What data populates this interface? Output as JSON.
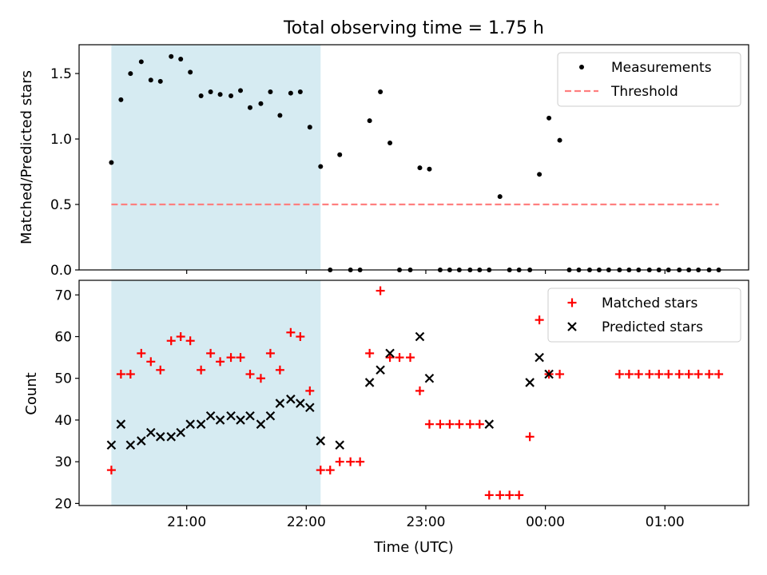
{
  "title": "Total observing time = 1.75 h",
  "x_axis": {
    "label": "Time (UTC)",
    "ticks": [
      {
        "value": 21.0,
        "label": "21:00"
      },
      {
        "value": 22.0,
        "label": "22:00"
      },
      {
        "value": 23.0,
        "label": "23:00"
      },
      {
        "value": 24.0,
        "label": "00:00"
      },
      {
        "value": 25.0,
        "label": "01:00"
      }
    ]
  },
  "colors": {
    "shade": "#add8e6",
    "measurements": "#000000",
    "threshold": "#ff7f7f",
    "matched": "#ff0000",
    "predicted": "#000000"
  },
  "chart_data": [
    {
      "type": "scatter",
      "xlabel": "",
      "ylabel": "Matched/Predicted stars",
      "xlim": [
        20.1,
        25.7
      ],
      "ylim": [
        0.0,
        1.72
      ],
      "yticks": [
        {
          "value": 0.0,
          "label": "0.0"
        },
        {
          "value": 0.5,
          "label": "0.5"
        },
        {
          "value": 1.0,
          "label": "1.0"
        },
        {
          "value": 1.5,
          "label": "1.5"
        }
      ],
      "shaded_region": [
        20.37,
        22.12
      ],
      "grid": false,
      "legend": {
        "position": "top-right",
        "entries": [
          "Measurements",
          "Threshold"
        ]
      },
      "series": [
        {
          "name": "Measurements",
          "marker": "dot",
          "x": [
            20.37,
            20.45,
            20.53,
            20.62,
            20.7,
            20.78,
            20.87,
            20.95,
            21.03,
            21.12,
            21.2,
            21.28,
            21.37,
            21.45,
            21.53,
            21.62,
            21.7,
            21.78,
            21.87,
            21.95,
            22.03,
            22.12,
            22.2,
            22.28,
            22.37,
            22.45,
            22.53,
            22.62,
            22.7,
            22.78,
            22.87,
            22.95,
            23.03,
            23.12,
            23.2,
            23.28,
            23.37,
            23.45,
            23.53,
            23.62,
            23.7,
            23.78,
            23.87,
            23.95,
            24.03,
            24.12,
            24.2,
            24.28,
            24.37,
            24.45,
            24.53,
            24.62,
            24.7,
            24.78,
            24.87,
            24.95,
            25.03,
            25.12,
            25.2,
            25.28,
            25.37,
            25.45
          ],
          "values": [
            0.82,
            1.3,
            1.5,
            1.59,
            1.45,
            1.44,
            1.63,
            1.61,
            1.51,
            1.33,
            1.36,
            1.34,
            1.33,
            1.37,
            1.24,
            1.27,
            1.36,
            1.18,
            1.35,
            1.36,
            1.09,
            0.79,
            0,
            0.88,
            0,
            0,
            1.14,
            1.36,
            0.97,
            0,
            0,
            0.78,
            0.77,
            0,
            0,
            0,
            0,
            0,
            0,
            0.56,
            0,
            0,
            0,
            0.73,
            1.16,
            0.99,
            0,
            0,
            0,
            0,
            0,
            0,
            0,
            0,
            0,
            0,
            0,
            0,
            0,
            0,
            0,
            0
          ]
        },
        {
          "name": "Threshold",
          "style": "dashed",
          "x": [
            20.37,
            25.45
          ],
          "values": [
            0.5,
            0.5
          ]
        }
      ]
    },
    {
      "type": "scatter",
      "xlabel": "Time (UTC)",
      "ylabel": "Count",
      "xlim": [
        20.1,
        25.7
      ],
      "ylim": [
        19.5,
        73.5
      ],
      "yticks": [
        {
          "value": 20,
          "label": "20"
        },
        {
          "value": 30,
          "label": "30"
        },
        {
          "value": 40,
          "label": "40"
        },
        {
          "value": 50,
          "label": "50"
        },
        {
          "value": 60,
          "label": "60"
        },
        {
          "value": 70,
          "label": "70"
        }
      ],
      "shaded_region": [
        20.37,
        22.12
      ],
      "grid": false,
      "legend": {
        "position": "top-right",
        "entries": [
          "Matched stars",
          "Predicted stars"
        ]
      },
      "series": [
        {
          "name": "Matched stars",
          "marker": "plus",
          "x": [
            20.37,
            20.45,
            20.53,
            20.62,
            20.7,
            20.78,
            20.87,
            20.95,
            21.03,
            21.12,
            21.2,
            21.28,
            21.37,
            21.45,
            21.53,
            21.62,
            21.7,
            21.78,
            21.87,
            21.95,
            22.03,
            22.12,
            22.2,
            22.28,
            22.37,
            22.45,
            22.53,
            22.62,
            22.7,
            22.78,
            22.87,
            22.95,
            23.03,
            23.12,
            23.2,
            23.28,
            23.37,
            23.45,
            23.53,
            23.62,
            23.7,
            23.78,
            23.87,
            23.95,
            24.03,
            24.12,
            24.2,
            24.28,
            24.37,
            24.45,
            24.53,
            24.62,
            24.7,
            24.78,
            24.87,
            24.95,
            25.03,
            25.12,
            25.2,
            25.28,
            25.37,
            25.45
          ],
          "values": [
            28,
            51,
            51,
            56,
            54,
            52,
            59,
            60,
            59,
            52,
            56,
            54,
            55,
            55,
            51,
            50,
            56,
            52,
            61,
            60,
            47,
            28,
            28,
            30,
            30,
            30,
            56,
            71,
            55,
            55,
            55,
            47,
            39,
            39,
            39,
            39,
            39,
            39,
            22,
            22,
            22,
            22,
            36,
            64,
            51,
            51,
            null,
            null,
            null,
            null,
            null,
            51,
            51,
            51,
            51,
            51,
            51,
            51,
            51,
            51,
            51,
            51
          ]
        },
        {
          "name": "Predicted stars",
          "marker": "x",
          "x": [
            20.37,
            20.45,
            20.53,
            20.62,
            20.7,
            20.78,
            20.87,
            20.95,
            21.03,
            21.12,
            21.2,
            21.28,
            21.37,
            21.45,
            21.53,
            21.62,
            21.7,
            21.78,
            21.87,
            21.95,
            22.03,
            22.12,
            22.28,
            22.53,
            22.62,
            22.7,
            22.95,
            23.03,
            23.53,
            23.87,
            23.95,
            24.03
          ],
          "values": [
            34,
            39,
            34,
            35,
            37,
            36,
            36,
            37,
            39,
            39,
            41,
            40,
            41,
            40,
            41,
            39,
            41,
            44,
            45,
            44,
            43,
            35,
            34,
            49,
            52,
            56,
            60,
            50,
            39,
            49,
            55,
            51
          ]
        }
      ]
    }
  ]
}
